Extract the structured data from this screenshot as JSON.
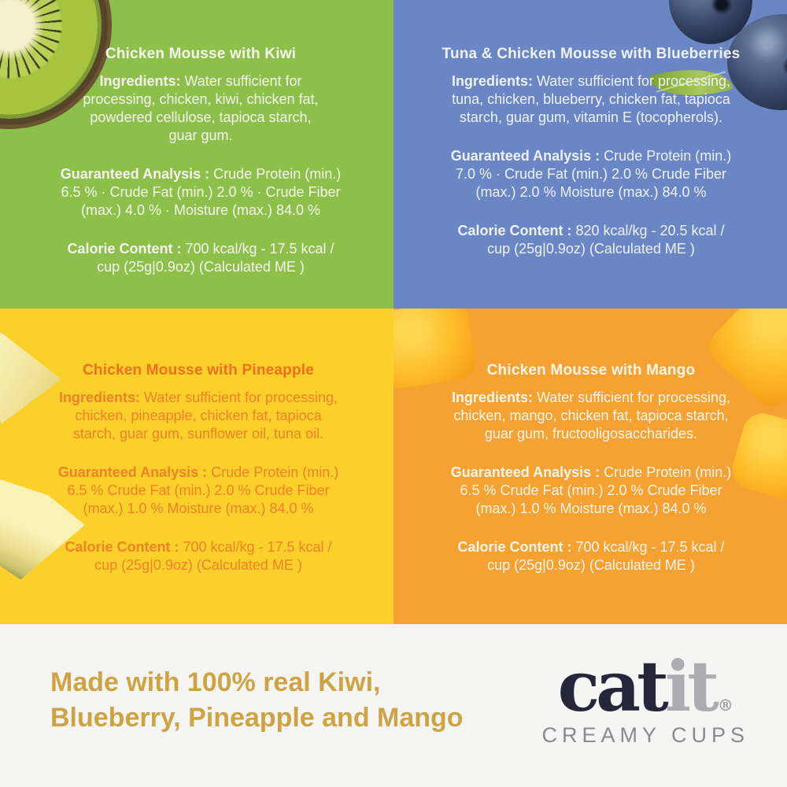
{
  "panels": [
    {
      "id": "kiwi",
      "bg_color": "#8DC04B",
      "text_color": "#F4F5EC",
      "fruit_icon": "kiwi-slice-icon",
      "title": "Chicken Mousse with Kiwi",
      "ingredients_label": "Ingredients:",
      "ingredients_text": " Water sufficient for\nprocessing, chicken, kiwi, chicken fat,\npowdered cellulose, tapioca starch,\nguar gum.",
      "analysis_label": "Guaranteed Analysis :",
      "analysis_text": " Crude Protein (min.)\n6.5 % · Crude Fat (min.) 2.0 % · Crude Fiber\n(max.) 4.0 % · Moisture (max.) 84.0 %",
      "calorie_label": "Calorie Content :",
      "calorie_text": " 700 kcal/kg - 17.5 kcal /\ncup (25g|0.9oz) (Calculated ME )"
    },
    {
      "id": "blueberry",
      "bg_color": "#6B86C4",
      "text_color": "#EDF2F9",
      "fruit_icon": "blueberries-icon",
      "title": "Tuna & Chicken Mousse with Blueberries",
      "ingredients_label": "Ingredients:",
      "ingredients_text": " Water sufficient for processing,\ntuna, chicken, blueberry, chicken fat, tapioca\nstarch, guar gum, vitamin E (tocopherols).",
      "analysis_label": "Guaranteed Analysis :",
      "analysis_text": " Crude Protein (min.)\n7.0 % · Crude Fat (min.) 2.0 % Crude Fiber\n(max.) 2.0 % Moisture (max.) 84.0 %",
      "calorie_label": "Calorie Content :",
      "calorie_text": " 820 kcal/kg - 20.5 kcal /\ncup (25g|0.9oz) (Calculated ME )"
    },
    {
      "id": "pineapple",
      "bg_color": "#FBD02B",
      "text_color": "#F08226",
      "title_color": "#EE701C",
      "fruit_icon": "pineapple-wedges-icon",
      "title": "Chicken Mousse with Pineapple",
      "ingredients_label": "Ingredients:",
      "ingredients_text": " Water sufficient for processing,\nchicken, pineapple, chicken fat, tapioca\nstarch, guar gum, sunflower oil, tuna oil.",
      "analysis_label": "Guaranteed Analysis :",
      "analysis_text": " Crude Protein (min.)\n6.5 % Crude Fat (min.) 2.0 % Crude Fiber\n(max.) 1.0 % Moisture (max.) 84.0 %",
      "calorie_label": "Calorie Content :",
      "calorie_text": " 700 kcal/kg - 17.5 kcal /\ncup (25g|0.9oz) (Calculated ME )"
    },
    {
      "id": "mango",
      "bg_color": "#F6A233",
      "text_color": "#FCF5EA",
      "fruit_icon": "mango-cubes-icon",
      "title": "Chicken Mousse with Mango",
      "ingredients_label": "Ingredients:",
      "ingredients_text": " Water sufficient for processing,\nchicken, mango, chicken fat, tapioca starch,\nguar gum, fructooligosaccharides.",
      "analysis_label": "Guaranteed Analysis :",
      "analysis_text": " Crude Protein (min.)\n6.5 % Crude Fat (min.) 2.0 % Crude Fiber\n(max.) 1.0 % Moisture (max.) 84.0 %",
      "calorie_label": "Calorie Content :",
      "calorie_text": " 700 kcal/kg - 17.5 kcal /\ncup (25g|0.9oz) (Calculated ME )"
    }
  ],
  "footer": {
    "background": "#F5F5F3",
    "tagline": "Made with 100% real Kiwi,\nBlueberry, Pineapple and Mango",
    "tagline_color": "#CEA344",
    "logo": {
      "cat": "cat",
      "it": "it",
      "registered": "®",
      "subtitle": "CREAMY CUPS",
      "cat_color": "#26263A",
      "it_color": "#ACACB1",
      "registered_color": "#9B9BA0",
      "subtitle_color": "#8A8A8E"
    }
  }
}
